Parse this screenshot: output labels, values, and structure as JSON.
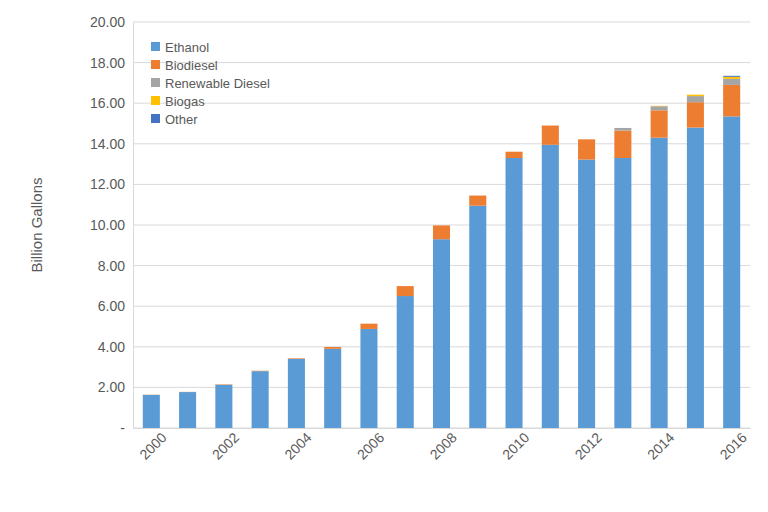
{
  "chart_data": {
    "type": "bar",
    "stacked": true,
    "grid": true,
    "legend": "upper left",
    "ylabel": "Billion Gallons",
    "categories": [
      "2000",
      null,
      "2002",
      null,
      "2004",
      null,
      "2006",
      null,
      "2008",
      null,
      "2010",
      null,
      "2012",
      null,
      "2014",
      null,
      "2016"
    ],
    "series": [
      {
        "name": "Ethanol",
        "color": "#5b9bd5",
        "values": [
          1.63,
          1.77,
          2.13,
          2.8,
          3.4,
          3.9,
          4.88,
          6.5,
          9.3,
          10.95,
          13.3,
          13.95,
          13.22,
          13.3,
          14.3,
          14.8,
          15.35
        ]
      },
      {
        "name": "Biodiesel",
        "color": "#ed7d31",
        "values": [
          0.01,
          0.01,
          0.02,
          0.02,
          0.03,
          0.09,
          0.26,
          0.49,
          0.68,
          0.5,
          0.31,
          0.95,
          1.0,
          1.35,
          1.35,
          1.25,
          1.55
        ]
      },
      {
        "name": "Renewable Diesel",
        "color": "#a5a5a5",
        "values": [
          0,
          0,
          0,
          0,
          0,
          0,
          0,
          0,
          0,
          0,
          0,
          0,
          0,
          0.13,
          0.2,
          0.3,
          0.3
        ]
      },
      {
        "name": "Biogas",
        "color": "#ffc000",
        "values": [
          0,
          0,
          0,
          0,
          0,
          0,
          0,
          0,
          0,
          0,
          0,
          0,
          0,
          0,
          0.02,
          0.07,
          0.1
        ]
      },
      {
        "name": "Other",
        "color": "#4472c4",
        "values": [
          0,
          0,
          0,
          0,
          0,
          0,
          0,
          0,
          0,
          0,
          0,
          0,
          0,
          0,
          0,
          0,
          0.05
        ]
      }
    ],
    "ylim": [
      0,
      20
    ],
    "yticks": [
      {
        "value": 0,
        "label": "-"
      },
      {
        "value": 2,
        "label": "2.00"
      },
      {
        "value": 4,
        "label": "4.00"
      },
      {
        "value": 6,
        "label": "6.00"
      },
      {
        "value": 8,
        "label": "8.00"
      },
      {
        "value": 10,
        "label": "10.00"
      },
      {
        "value": 12,
        "label": "12.00"
      },
      {
        "value": 14,
        "label": "14.00"
      },
      {
        "value": 16,
        "label": "16.00"
      },
      {
        "value": 18,
        "label": "18.00"
      },
      {
        "value": 20,
        "label": "20.00"
      }
    ]
  }
}
